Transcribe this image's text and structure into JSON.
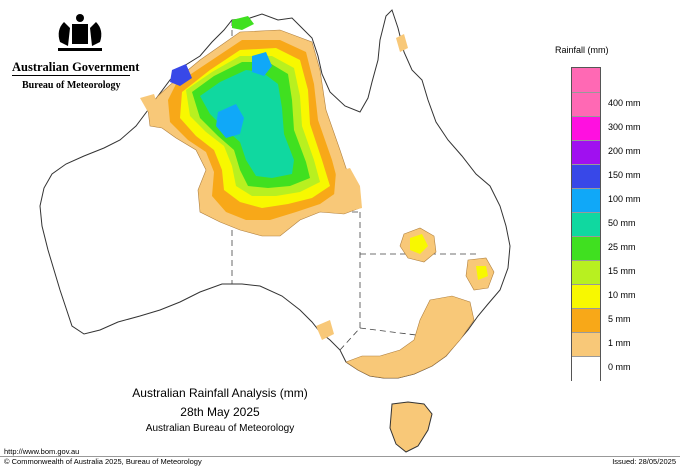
{
  "header": {
    "government": "Australian Government",
    "agency": "Bureau of Meteorology"
  },
  "legend": {
    "title": "Rainfall (mm)",
    "items": [
      {
        "label": "400 mm",
        "color": "#ff69b4"
      },
      {
        "label": "300 mm",
        "color": "#ff10e0"
      },
      {
        "label": "200 mm",
        "color": "#a010f0"
      },
      {
        "label": "150 mm",
        "color": "#3848e8"
      },
      {
        "label": "100 mm",
        "color": "#10a8f8"
      },
      {
        "label": "50 mm",
        "color": "#10d8a0"
      },
      {
        "label": "25 mm",
        "color": "#40e020"
      },
      {
        "label": "15 mm",
        "color": "#b8f020"
      },
      {
        "label": "10 mm",
        "color": "#f8f800"
      },
      {
        "label": "5 mm",
        "color": "#f8a818"
      },
      {
        "label": "1 mm",
        "color": "#f8c878"
      },
      {
        "label": "0 mm",
        "color": "#ffffff"
      }
    ]
  },
  "caption": {
    "title": "Australian Rainfall Analysis (mm)",
    "date": "28th May 2025",
    "source": "Australian Bureau of Meteorology"
  },
  "footer": {
    "url": "http://www.bom.gov.au",
    "copyright": "© Commonwealth of Australia 2025, Bureau of Meteorology",
    "issued": "Issued: 28/05/2025"
  }
}
